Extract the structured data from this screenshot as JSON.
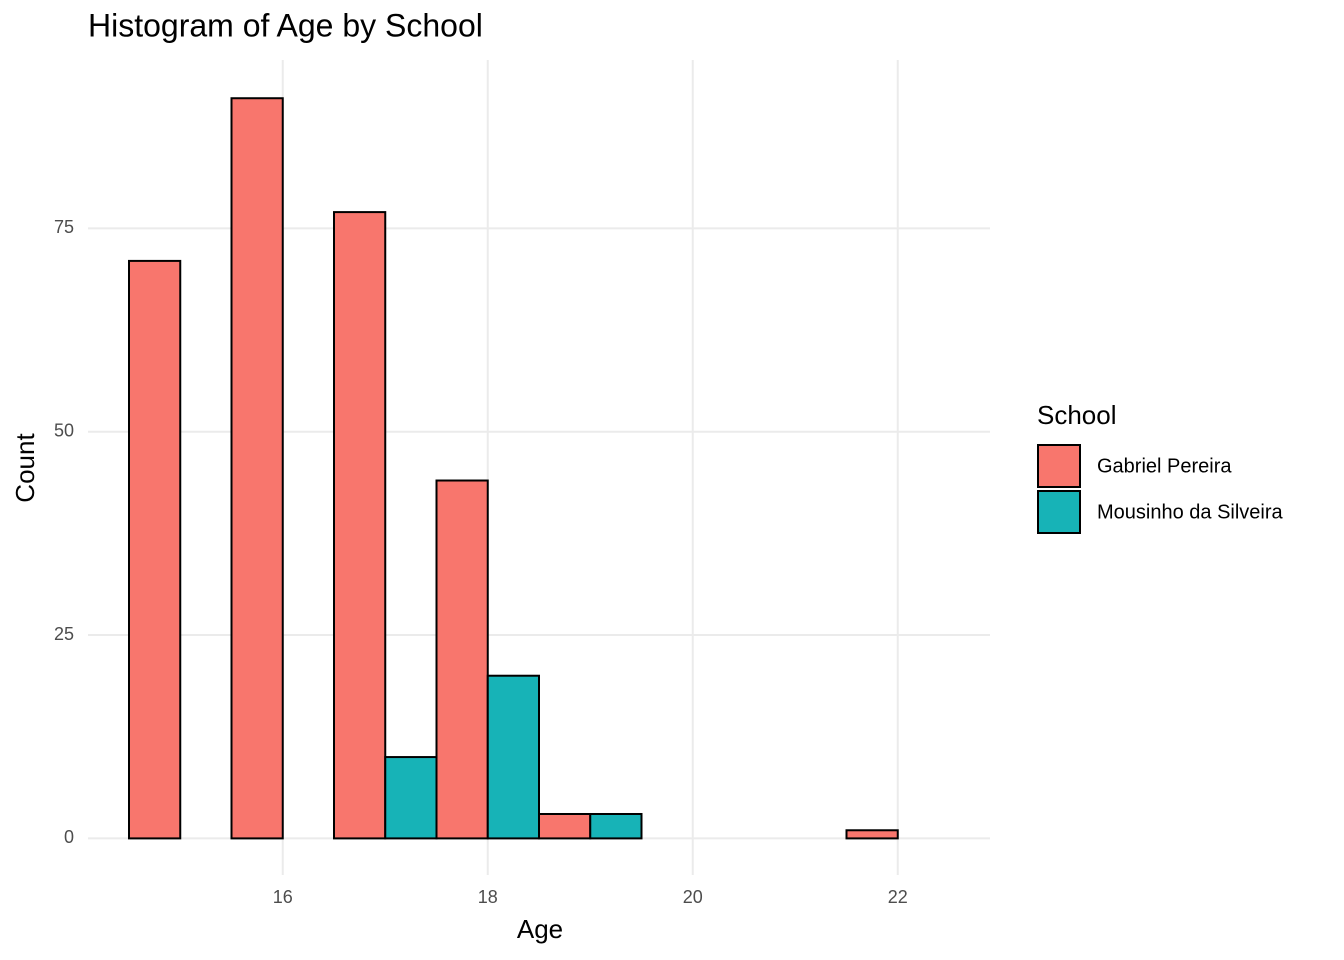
{
  "chart_data": {
    "type": "histogram",
    "title": "Histogram of Age by School",
    "x_label": "Age",
    "y_label": "Count",
    "legend_title": "School",
    "bins": [
      14.5,
      15.5,
      16.5,
      17.5,
      18.5,
      19.5,
      20.5,
      21.5,
      22.5
    ],
    "series": [
      {
        "name": "Gabriel Pereira",
        "color": "#F8766D",
        "values": [
          71,
          91,
          77,
          44,
          3,
          0,
          0,
          1
        ]
      },
      {
        "name": "Mousinho da Silveira",
        "color": "#17B3B7",
        "values": [
          0,
          0,
          10,
          20,
          3,
          0,
          0,
          0
        ]
      }
    ],
    "xlim": [
      14.1,
      22.9
    ],
    "ylim": [
      -4.5,
      95.7
    ],
    "xticks": [
      16,
      18,
      20,
      22
    ],
    "yticks": [
      0,
      25,
      50,
      75
    ],
    "grid": true,
    "legend_position": "right"
  }
}
